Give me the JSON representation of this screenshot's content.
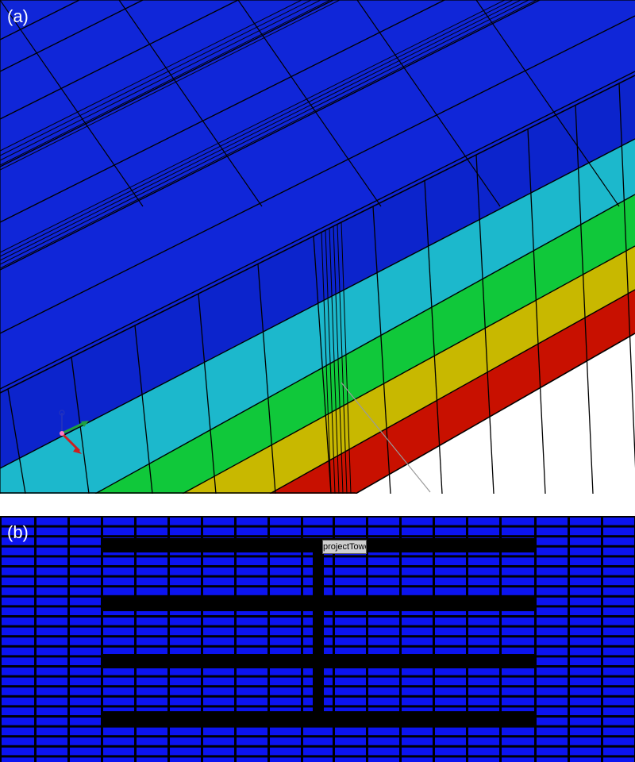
{
  "panels": {
    "a": {
      "label": "(a)"
    },
    "b": {
      "label": "(b)",
      "tower_label": "projectTower"
    }
  },
  "colors": {
    "layer_1_top": "#1024d0",
    "layer_2": "#1cb8cc",
    "layer_3": "#10c83a",
    "layer_4": "#c8b800",
    "layer_5": "#c81000",
    "plan_cells": "#0c14f0",
    "plan_grid": "#000000",
    "axis_x": "#cc2020",
    "axis_y": "#20a040",
    "axis_z": "#2030c0"
  },
  "icons": {
    "triad": "coordinate-triad-icon"
  }
}
